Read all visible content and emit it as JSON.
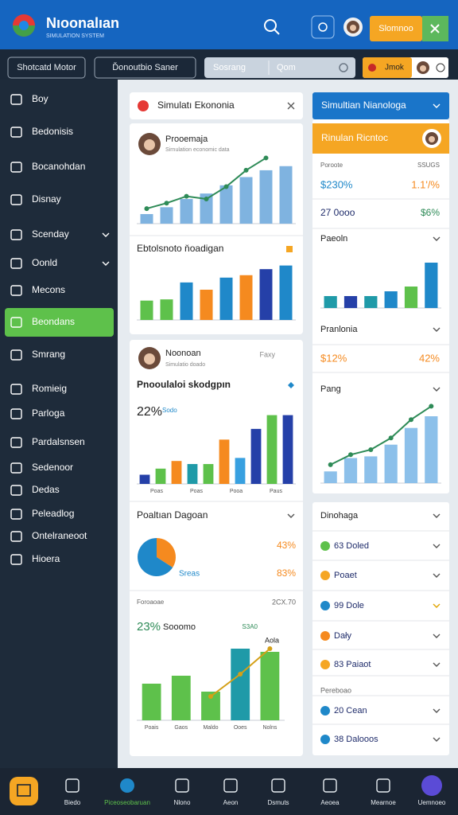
{
  "header": {
    "title": "Nıoonalıan",
    "subtitle": "SIMULATION SYSTEM",
    "button": "Slomnoo"
  },
  "toolbar": {
    "buttons": [
      "Shotcatd Motor",
      "Ďonoutbio Saner"
    ],
    "search": "Sosrang",
    "query": "Qom",
    "chip": "Jmok"
  },
  "sidebar": {
    "items": [
      "Boy",
      "Bedonisis",
      "Bocanohdan",
      "Disnay",
      "Scenday",
      "Oonld",
      "Mecons",
      "Beondans",
      "Smrang",
      "Romieig",
      "Parloga",
      "Pardalsnsen",
      "Sedenoor",
      "Dedas",
      "Peleadlog",
      "Ontelraneoot",
      "Hioera"
    ],
    "active": 7
  },
  "left": {
    "card1": {
      "title": "Simulatı Ekononia",
      "profile": {
        "name": "Prooemaja",
        "caption": "Sirnulation economic data"
      },
      "chart1": {
        "type": "bar",
        "ylim": [
          0,
          100
        ],
        "series": [
          {
            "kind": "bar",
            "color": "#7fb3e0",
            "values": [
              14,
              24,
              36,
              44,
              56,
              68,
              78,
              84
            ]
          },
          {
            "kind": "line",
            "color": "#2e8b57",
            "values": [
              22,
              30,
              40,
              36,
              54,
              78,
              96,
              null
            ]
          }
        ]
      },
      "section": "Ebtolsnoto ňoadigan",
      "chart2": {
        "type": "bar",
        "ylim": [
          0,
          100
        ],
        "series": [
          {
            "kind": "bar",
            "colors": [
              "#5ec14b",
              "#5ec14b",
              "#1f88c9",
              "#f58a1f",
              "#1f88c9",
              "#f58a1f",
              "#2540a8",
              "#1f88c9"
            ],
            "values": [
              32,
              34,
              62,
              50,
              70,
              74,
              84,
              90
            ]
          }
        ]
      }
    },
    "card2": {
      "profile": {
        "name": "Noonoan",
        "caption": "Simulatio doado",
        "tag": "Faxy"
      },
      "section": "Pnooulaloi skodgpın",
      "stat": "22%",
      "stat_label": "Sodo",
      "chart3": {
        "type": "bar",
        "ylim": [
          0,
          100
        ],
        "labels": [
          "Poas",
          "Poas",
          "Pooa",
          "Paus"
        ],
        "series": [
          {
            "kind": "bar",
            "colors": [
              "#2540a8",
              "#5ec14b",
              "#f58a1f",
              "#1f9aa8",
              "#5ec14b",
              "#f58a1f",
              "#38a0e0",
              "#2540a8",
              "#5ec14b",
              "#2540a8"
            ],
            "values": [
              12,
              20,
              30,
              26,
              26,
              58,
              34,
              72,
              90,
              90
            ]
          }
        ]
      },
      "pie_title": "Poaltıan Dagoan",
      "pie": {
        "type": "pie",
        "values": [
          43,
          83
        ],
        "colors": [
          "#f58a1f",
          "#1f88c9"
        ],
        "value_labels": [
          "43%",
          "83%"
        ],
        "caption": "Sreas"
      },
      "foot_label": "Foroaoae",
      "foot_value": "2CX.70",
      "stat2": "23%",
      "stat2_label": "Sooomo",
      "tag2": "S3A0",
      "note": "Aola",
      "chart4": {
        "type": "bar",
        "ylim": [
          0,
          100
        ],
        "labels": [
          "Poais",
          "Gaos",
          "Maldo",
          "Ooes",
          "Nolns"
        ],
        "series": [
          {
            "kind": "bar",
            "colors": [
              "#5ec14b",
              "#5ec14b",
              "#5ec14b",
              "#1f9aa8",
              "#5ec14b"
            ],
            "values": [
              46,
              56,
              36,
              90,
              86
            ]
          },
          {
            "kind": "line",
            "color": "#d4a017",
            "values": [
              null,
              null,
              30,
              58,
              90
            ]
          }
        ]
      }
    }
  },
  "right": {
    "title": "Simultian Nianologa",
    "band": "Rinulan Ricntoc",
    "rows": [
      [
        "Poroote",
        "SSUGS"
      ],
      [
        "$230%",
        "1.1'/%"
      ],
      [
        "27 0ooo",
        "$6%"
      ]
    ],
    "section1": "Paeoln",
    "chart5": {
      "type": "bar",
      "ylim": [
        0,
        100
      ],
      "series": [
        {
          "kind": "bar",
          "colors": [
            "#1f9aa8",
            "#2540a8",
            "#1f9aa8",
            "#1f88c9",
            "#5ec14b",
            "#1f88c9"
          ],
          "values": [
            20,
            20,
            20,
            28,
            36,
            76
          ]
        }
      ]
    },
    "section2": "Pranlonia",
    "stats2": [
      "$12%",
      "42%"
    ],
    "section3": "Pang",
    "chart6": {
      "type": "bar",
      "ylim": [
        0,
        100
      ],
      "series": [
        {
          "kind": "bar",
          "color": "#8cc0ea",
          "values": [
            14,
            30,
            32,
            46,
            66,
            80
          ]
        },
        {
          "kind": "line",
          "color": "#2e8b57",
          "values": [
            22,
            34,
            40,
            54,
            76,
            92
          ]
        }
      ]
    },
    "list_title": "Dinohaga",
    "list": [
      "63 Doled",
      "Poaet",
      "99 Dole",
      "Dały",
      "83 Paiaot",
      "Pereboao",
      "20 Cean",
      "38 Dalooos"
    ]
  },
  "bottom_nav": [
    "Biedo",
    "Piceoseobaruan",
    "Nlono",
    "Aeon",
    "Dsmuts",
    "Aeoea",
    "Mearnoe",
    "Uemnoeo"
  ]
}
